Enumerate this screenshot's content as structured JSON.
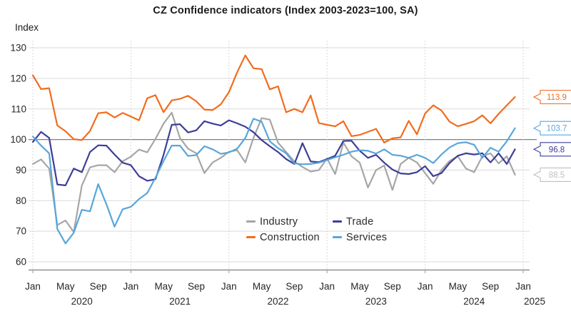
{
  "title": "CZ Confidence indicators (Index 2003-2023=100, SA)",
  "chart_data": {
    "type": "line",
    "title": "CZ Confidence indicators (Index 2003-2023=100, SA)",
    "ylabel": "Index",
    "ylim": [
      60,
      130
    ],
    "y_ticks": [
      60,
      70,
      80,
      90,
      100,
      110,
      120,
      130
    ],
    "baseline": 100,
    "grid": true,
    "x_start": "2020-01",
    "x_end": "2024-12",
    "x_axis": {
      "tick_months": [
        "Jan",
        "May",
        "Sep"
      ],
      "years": [
        "2020",
        "2021",
        "2022",
        "2023",
        "2024"
      ],
      "final_tick": "Jan",
      "final_year": "2025"
    },
    "legend_position": "inside-bottom-center",
    "series": [
      {
        "name": "Industry",
        "color": "#a6a6a6",
        "callout_color": "#bfbfbf",
        "end_label": "88.5",
        "values": [
          92,
          93.5,
          90.5,
          72,
          73.5,
          69.7,
          85,
          90.9,
          91.6,
          91.6,
          89.3,
          92.9,
          94.4,
          96.7,
          95.8,
          100.2,
          105.2,
          108.8,
          100.5,
          97,
          95.5,
          89,
          92.5,
          94,
          96,
          96.5,
          92.5,
          100.5,
          107,
          106.5,
          99,
          95.9,
          92.8,
          91,
          89.5,
          90,
          93.8,
          88.7,
          99,
          94.5,
          92.4,
          84.3,
          90,
          91.5,
          83.5,
          92,
          94,
          92.5,
          89,
          85.5,
          90,
          93,
          94.5,
          90.5,
          89.3,
          94.5,
          95.5,
          92.2,
          94.5,
          88.5
        ]
      },
      {
        "name": "Trade",
        "color": "#3d3d99",
        "callout_color": "#3d3d99",
        "end_label": "96.8",
        "values": [
          99.2,
          102.5,
          100.5,
          85.3,
          85,
          90.5,
          89.3,
          95.9,
          98.1,
          98,
          95.1,
          92.4,
          91.6,
          88,
          86.5,
          87,
          95,
          104.8,
          105,
          102.3,
          103,
          106,
          105.2,
          104.6,
          106.3,
          105.3,
          104.2,
          102.4,
          99.8,
          97.8,
          95.9,
          93.6,
          92,
          98.8,
          92.8,
          92.6,
          93.6,
          94.7,
          99.5,
          99.6,
          96.3,
          94,
          95,
          92.4,
          90.2,
          88.9,
          88.7,
          89.3,
          91.3,
          88,
          89,
          92.3,
          94.7,
          95.5,
          95.1,
          95.5,
          92.5,
          95.5,
          92,
          96.8
        ]
      },
      {
        "name": "Construction",
        "color": "#f26c1d",
        "callout_color": "#f26c1d",
        "end_label": "113.9",
        "values": [
          121,
          116.5,
          116.8,
          104.6,
          102.7,
          100.1,
          99.8,
          102.8,
          108.6,
          108.9,
          107.2,
          108.7,
          107.5,
          106.3,
          113.5,
          114.5,
          108.9,
          112.8,
          113.3,
          114.3,
          112.5,
          109.8,
          109.6,
          111.5,
          115.5,
          122,
          127.5,
          123.3,
          123,
          116.4,
          117.4,
          108.9,
          110,
          108.9,
          114.4,
          105.4,
          104.8,
          104.3,
          106,
          101.1,
          101.5,
          102.5,
          103.5,
          99,
          100.4,
          100.7,
          106.1,
          101.7,
          108.5,
          111.2,
          109.5,
          105.8,
          104.3,
          105.1,
          106,
          107.9,
          105.3,
          108.4,
          111.2,
          113.9
        ]
      },
      {
        "name": "Services",
        "color": "#58a6db",
        "callout_color": "#58a6db",
        "end_label": "103.7",
        "values": [
          101,
          98,
          95.5,
          70.7,
          66,
          69.5,
          77,
          76.5,
          85.4,
          78.8,
          71.5,
          77.2,
          78,
          80.5,
          82.5,
          87.5,
          93,
          98,
          98,
          94.6,
          94.9,
          97.8,
          96.8,
          95.3,
          95.8,
          97,
          100.5,
          106.8,
          105.8,
          99.4,
          97.2,
          95.5,
          92.2,
          91.9,
          92,
          92.4,
          93.3,
          94.2,
          95,
          96,
          96.5,
          96.3,
          95.4,
          96.8,
          95,
          94.7,
          94,
          95,
          94,
          92.3,
          95.1,
          97.4,
          98.8,
          99.1,
          98.3,
          94,
          97.3,
          96,
          99.4,
          103.7
        ]
      }
    ]
  }
}
